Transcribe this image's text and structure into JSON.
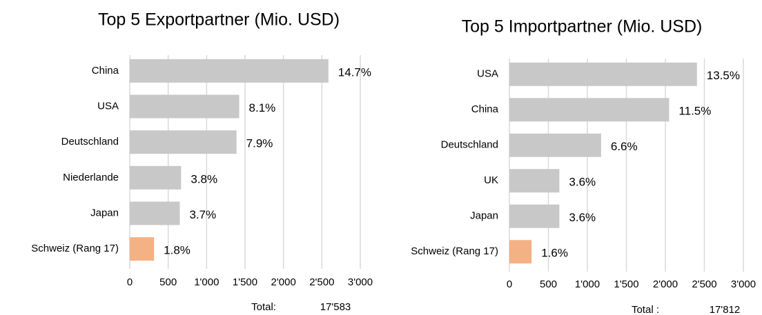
{
  "chart_data": [
    {
      "type": "bar",
      "orientation": "horizontal",
      "title": "Top 5 Exportpartner (Mio. USD)",
      "categories": [
        "China",
        "USA",
        "Deutschland",
        "Niederlande",
        "Japan",
        "Schweiz (Rang 17)"
      ],
      "values": [
        2585,
        1424,
        1389,
        668,
        651,
        316
      ],
      "value_labels": [
        "14.7%",
        "8.1%",
        "7.9%",
        "3.8%",
        "3.7%",
        "1.8%"
      ],
      "colors": [
        "#c8c8c8",
        "#c8c8c8",
        "#c8c8c8",
        "#c8c8c8",
        "#c8c8c8",
        "#f4b183"
      ],
      "xlim": [
        0,
        3000
      ],
      "xticks": [
        0,
        500,
        {
          "value": 1000,
          "label": "1'000"
        },
        {
          "value": 1500,
          "label": "1'500"
        },
        {
          "value": 2000,
          "label": "2'000"
        },
        {
          "value": 2500,
          "label": "2'500"
        },
        {
          "value": 3000,
          "label": "3'000"
        }
      ],
      "grid": true,
      "total_label": "Total:",
      "total": "17'583"
    },
    {
      "type": "bar",
      "orientation": "horizontal",
      "title": "Top 5 Importpartner (Mio. USD)",
      "categories": [
        "USA",
        "China",
        "Deutschland",
        "UK",
        "Japan",
        "Schweiz (Rang 17)"
      ],
      "values": [
        2405,
        2048,
        1176,
        641,
        641,
        285
      ],
      "value_labels": [
        "13.5%",
        "11.5%",
        "6.6%",
        "3.6%",
        "3.6%",
        "1.6%"
      ],
      "colors": [
        "#c8c8c8",
        "#c8c8c8",
        "#c8c8c8",
        "#c8c8c8",
        "#c8c8c8",
        "#f4b183"
      ],
      "xlim": [
        0,
        3000
      ],
      "xticks": [
        0,
        500,
        {
          "value": 1000,
          "label": "1'000"
        },
        {
          "value": 1500,
          "label": "1'500"
        },
        {
          "value": 2000,
          "label": "2'000"
        },
        {
          "value": 2500,
          "label": "2'500"
        },
        {
          "value": 3000,
          "label": "3'000"
        }
      ],
      "grid": true,
      "total_label": "Total :",
      "total": "17'812"
    }
  ]
}
